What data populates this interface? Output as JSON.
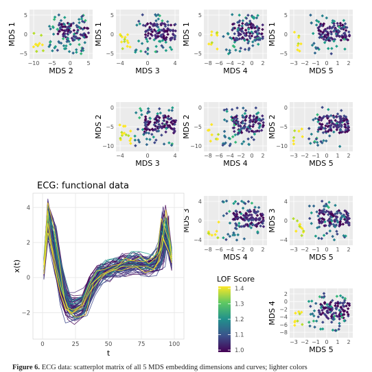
{
  "figure": {
    "caption_label": "Figure 6.",
    "caption_text": "ECG data: scatterplot matrix of all 5 MDS embedding dimensions and curves; lighter colors",
    "ecg_title": "ECG: functional data",
    "legend_title": "LOF Score",
    "legend_ticks": [
      1.4,
      1.3,
      1.2,
      1.1,
      1.0
    ],
    "colors": [
      "#440154",
      "#3b528b",
      "#21908c",
      "#5dc863",
      "#fde725"
    ]
  },
  "chart_data": [
    {
      "type": "scatter",
      "id": "p12",
      "xlabel": "MDS  2",
      "ylabel": "MDS  1",
      "xticks": [
        "−10",
        "−5",
        "0",
        "5"
      ],
      "yticks": [
        "5",
        "0",
        "−5"
      ]
    },
    {
      "type": "scatter",
      "id": "p13",
      "xlabel": "MDS  3",
      "ylabel": "MDS  1",
      "xticks": [
        "−4",
        "0",
        "4"
      ],
      "yticks": [
        "5",
        "0",
        "−5"
      ]
    },
    {
      "type": "scatter",
      "id": "p14",
      "xlabel": "MDS  4",
      "ylabel": "MDS  1",
      "xticks": [
        "−8",
        "−6",
        "−4",
        "−2",
        "0",
        "2"
      ],
      "yticks": [
        "5",
        "0",
        "−5"
      ]
    },
    {
      "type": "scatter",
      "id": "p15",
      "xlabel": "MDS  5",
      "ylabel": "MDS  1",
      "xticks": [
        "−3",
        "−2",
        "−1",
        "0",
        "1",
        "2"
      ],
      "yticks": [
        "5",
        "0",
        "−5"
      ]
    },
    {
      "type": "scatter",
      "id": "p23",
      "xlabel": "MDS  3",
      "ylabel": "MDS  2",
      "xticks": [
        "−4",
        "0",
        "4"
      ],
      "yticks": [
        "0",
        "−5",
        "−10"
      ]
    },
    {
      "type": "scatter",
      "id": "p24",
      "xlabel": "MDS  4",
      "ylabel": "MDS  2",
      "xticks": [
        "−8",
        "−6",
        "−4",
        "−2",
        "0",
        "2"
      ],
      "yticks": [
        "0",
        "−5",
        "−10"
      ]
    },
    {
      "type": "scatter",
      "id": "p25",
      "xlabel": "MDS  5",
      "ylabel": "MDS  2",
      "xticks": [
        "−3",
        "−2",
        "−1",
        "0",
        "1",
        "2"
      ],
      "yticks": [
        "0",
        "−5",
        "−10"
      ]
    },
    {
      "type": "scatter",
      "id": "p34",
      "xlabel": "MDS  4",
      "ylabel": "MDS  3",
      "xticks": [
        "−8",
        "−6",
        "−4",
        "−2",
        "0",
        "2"
      ],
      "yticks": [
        "4",
        "0",
        "−4"
      ]
    },
    {
      "type": "scatter",
      "id": "p35",
      "xlabel": "MDS  5",
      "ylabel": "MDS  3",
      "xticks": [
        "−3",
        "−2",
        "−1",
        "0",
        "1",
        "2"
      ],
      "yticks": [
        "4",
        "0",
        "−4"
      ]
    },
    {
      "type": "scatter",
      "id": "p45",
      "xlabel": "MDS  5",
      "ylabel": "MDS  4",
      "xticks": [
        "−3",
        "−2",
        "−1",
        "0",
        "1",
        "2"
      ],
      "yticks": [
        "2",
        "0",
        "−2",
        "−4",
        "−6",
        "−8"
      ]
    },
    {
      "type": "line",
      "id": "ecg",
      "title": "ECG: functional data",
      "xlabel": "t",
      "ylabel": "x(t)",
      "xticks": [
        "0",
        "25",
        "50",
        "75",
        "100"
      ],
      "yticks": [
        "4",
        "2",
        "0",
        "−2"
      ],
      "xlim": [
        0,
        100
      ],
      "ylim": [
        -3.2,
        4.5
      ]
    }
  ]
}
